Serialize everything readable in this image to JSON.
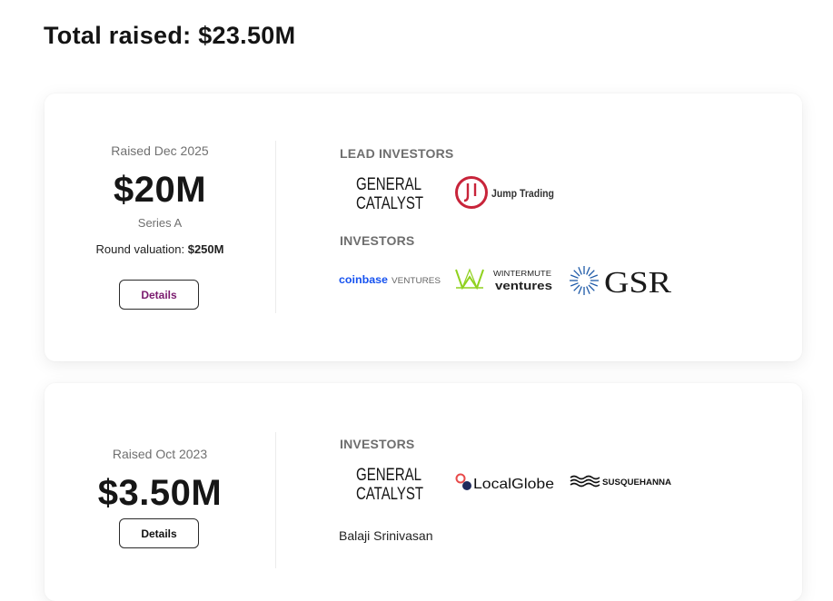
{
  "summary": {
    "title": "Total raised: $23.50M"
  },
  "rounds": [
    {
      "raised_label": "Raised Dec 2025",
      "amount": "$20M",
      "series": "Series A",
      "valuation_label": "Round valuation: ",
      "valuation_value": "$250M",
      "details_label": "Details",
      "lead_label": "LEAD INVESTORS",
      "investors_label": "INVESTORS",
      "lead_investors": [
        {
          "name": "General Catalyst",
          "line1": "GENERAL",
          "line2": "CATALYST"
        },
        {
          "name": "Jump Trading",
          "text": "Jump Trading",
          "color": "#c8243a"
        }
      ],
      "investors": [
        {
          "name": "Coinbase Ventures",
          "word": "coinbase",
          "suffix": "VENTURES",
          "color": "#1652f0"
        },
        {
          "name": "Wintermute Ventures",
          "line1": "WINTERMUTE",
          "line2": "ventures",
          "color": "#8fd11e"
        },
        {
          "name": "GSR",
          "text": "GSR",
          "color": "#1e5aa8"
        }
      ]
    },
    {
      "raised_label": "Raised Oct 2023",
      "amount": "$3.50M",
      "details_label": "Details",
      "investors_label": "INVESTORS",
      "investors": [
        {
          "name": "General Catalyst",
          "line1": "GENERAL",
          "line2": "CATALYST"
        },
        {
          "name": "LocalGlobe",
          "text": "LocalGlobe",
          "color1": "#e84a4a",
          "color2": "#1f2a5c"
        },
        {
          "name": "Susquehanna",
          "text": "SUSQUEHANNA"
        }
      ],
      "angels": [
        "Balaji Srinivasan"
      ]
    }
  ],
  "colors": {
    "details_text_card1": "#7a1a6e",
    "details_text_card2": "#111111"
  }
}
